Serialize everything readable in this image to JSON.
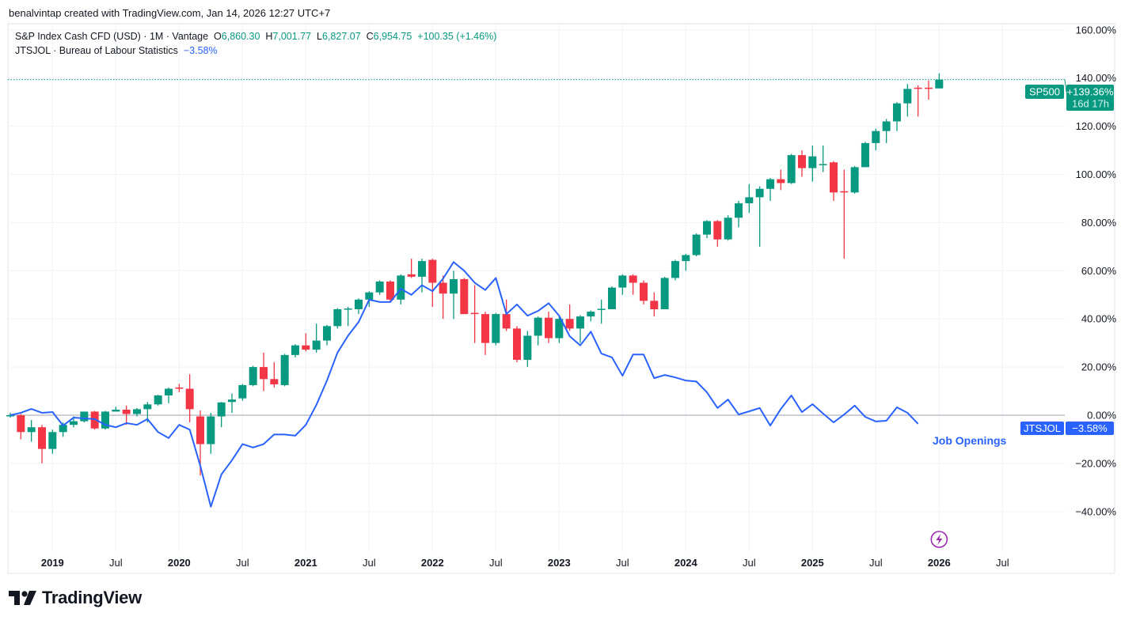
{
  "credit": "benalvintap created with TradingView.com, Jan 14, 2026 12:27 UTC+7",
  "legend": {
    "symbol": "S&P Index Cash CFD (USD) · 1M · Vantage",
    "o_label": "O",
    "o": "6,860.30",
    "h_label": "H",
    "h": "7,001.77",
    "l_label": "L",
    "l": "6,827.07",
    "c_label": "C",
    "c": "6,954.75",
    "change": "+100.35 (+1.46%)",
    "series2": "JTSJOL · Bureau of Labour Statistics",
    "series2_value": "−3.58%"
  },
  "logo_text": "TradingView",
  "colors": {
    "up": "#089981",
    "down": "#f23645",
    "line": "#2962ff",
    "event": "#9c27b0",
    "grid": "#f0f3fa",
    "text": "#131722"
  },
  "chart_data": {
    "type": "candlestick+line",
    "start_month": "2018-09",
    "y_unit": "% change",
    "ylim": [
      -55,
      165
    ],
    "y_ticks": [
      "160.00%",
      "140.00%",
      "120.00%",
      "100.00%",
      "80.00%",
      "60.00%",
      "40.00%",
      "20.00%",
      "0.00%",
      "−20.00%",
      "−40.00%"
    ],
    "y_tick_values": [
      160,
      140,
      120,
      100,
      80,
      60,
      40,
      20,
      0,
      -20,
      -40
    ],
    "x_ticks": [
      {
        "label": "2019",
        "month": 4,
        "bold": true
      },
      {
        "label": "Jul",
        "month": 10
      },
      {
        "label": "2020",
        "month": 16,
        "bold": true
      },
      {
        "label": "Jul",
        "month": 22
      },
      {
        "label": "2021",
        "month": 28,
        "bold": true
      },
      {
        "label": "Jul",
        "month": 34
      },
      {
        "label": "2022",
        "month": 40,
        "bold": true
      },
      {
        "label": "Jul",
        "month": 46
      },
      {
        "label": "2023",
        "month": 52,
        "bold": true
      },
      {
        "label": "Jul",
        "month": 58
      },
      {
        "label": "2024",
        "month": 64,
        "bold": true
      },
      {
        "label": "Jul",
        "month": 70
      },
      {
        "label": "2025",
        "month": 76,
        "bold": true
      },
      {
        "label": "Jul",
        "month": 82
      },
      {
        "label": "2026",
        "month": 88,
        "bold": true
      },
      {
        "label": "Jul",
        "month": 94
      }
    ],
    "series": [
      {
        "name": "SP500",
        "type": "candlestick",
        "fields": [
          "open",
          "high",
          "low",
          "close"
        ],
        "label": "SP500",
        "last_value": "+139.36%",
        "countdown": "16d 17h",
        "values": [
          [
            0,
            1,
            -1,
            0
          ],
          [
            0,
            0.5,
            -10,
            -7
          ],
          [
            -7,
            -2,
            -11,
            -5
          ],
          [
            -5,
            -4,
            -20,
            -14
          ],
          [
            -14,
            -6,
            -16,
            -7
          ],
          [
            -7,
            -3,
            -9,
            -4
          ],
          [
            -4,
            -0.5,
            -5,
            -2.5
          ],
          [
            -2.5,
            1.5,
            -3,
            1.5
          ],
          [
            1.5,
            1.8,
            -6,
            -5.5
          ],
          [
            -5.5,
            1.8,
            -6,
            1.5
          ],
          [
            1.5,
            3.5,
            1.5,
            2.3
          ],
          [
            2.3,
            4,
            -4,
            0.5
          ],
          [
            0.5,
            3,
            -0.5,
            2.5
          ],
          [
            2.5,
            5.5,
            -3,
            4.5
          ],
          [
            4.5,
            8.5,
            4,
            8.2
          ],
          [
            8.2,
            11.5,
            5,
            11
          ],
          [
            11.5,
            13,
            9.5,
            11
          ],
          [
            11,
            17,
            -3,
            2.5
          ],
          [
            -0.5,
            2,
            -25,
            -12
          ],
          [
            -12,
            1,
            -16,
            -0.5
          ],
          [
            -0.5,
            5.5,
            -5,
            5.3
          ],
          [
            5.5,
            9,
            1,
            6.5
          ],
          [
            7,
            13,
            6,
            12.5
          ],
          [
            12.5,
            20.5,
            12,
            20
          ],
          [
            20,
            26,
            10,
            15
          ],
          [
            15,
            22,
            11.5,
            12.8
          ],
          [
            12.5,
            25.5,
            12,
            25
          ],
          [
            25,
            29.5,
            24,
            29
          ],
          [
            29,
            34,
            26.5,
            27.2
          ],
          [
            27.2,
            38,
            26,
            31
          ],
          [
            31,
            37.5,
            29,
            37
          ],
          [
            37,
            44.5,
            36,
            44
          ],
          [
            44,
            45,
            37,
            44.3
          ],
          [
            44,
            48.5,
            42,
            48
          ],
          [
            48,
            51.5,
            45,
            51
          ],
          [
            51,
            56,
            50,
            55.5
          ],
          [
            55.5,
            56,
            47,
            48
          ],
          [
            48,
            58.5,
            46,
            58
          ],
          [
            58.5,
            65,
            57,
            57.5
          ],
          [
            57.5,
            65,
            51,
            64
          ],
          [
            64.5,
            65,
            45,
            55
          ],
          [
            55,
            58,
            40,
            50.5
          ],
          [
            50.5,
            60,
            40,
            56.5
          ],
          [
            56.5,
            57,
            42,
            42
          ],
          [
            42.5,
            54,
            30,
            42.3
          ],
          [
            42,
            43,
            25,
            30
          ],
          [
            30,
            42.5,
            29,
            42
          ],
          [
            42,
            48,
            35,
            36
          ],
          [
            36,
            37,
            22,
            23
          ],
          [
            23,
            35,
            20,
            33
          ],
          [
            33,
            41,
            29,
            40.5
          ],
          [
            40.5,
            43,
            30,
            32
          ],
          [
            32,
            41,
            30,
            40
          ],
          [
            40,
            46,
            35,
            36
          ],
          [
            36,
            41.5,
            30,
            41
          ],
          [
            41,
            43.5,
            39,
            43
          ],
          [
            44,
            48,
            38,
            44.2
          ],
          [
            44,
            53.5,
            44,
            53
          ],
          [
            53,
            58.5,
            50,
            58
          ],
          [
            58,
            58.5,
            50,
            55
          ],
          [
            55,
            56,
            46,
            47.5
          ],
          [
            47.5,
            51,
            41,
            44
          ],
          [
            44,
            57.5,
            44,
            57
          ],
          [
            57,
            64.5,
            56,
            64
          ],
          [
            64,
            67,
            60,
            66.5
          ],
          [
            66.5,
            75.5,
            66,
            75
          ],
          [
            75,
            81,
            73.5,
            80.6
          ],
          [
            80.6,
            81,
            70,
            73
          ],
          [
            73,
            83,
            72.5,
            82
          ],
          [
            82,
            89,
            78,
            88
          ],
          [
            88,
            96,
            84,
            90.5
          ],
          [
            90.5,
            95,
            70,
            94
          ],
          [
            94,
            98.5,
            89,
            98
          ],
          [
            98,
            102,
            93.5,
            96.4
          ],
          [
            96.4,
            108.5,
            96,
            108
          ],
          [
            108,
            110,
            99,
            102.6
          ],
          [
            102.6,
            112,
            97,
            107.5
          ],
          [
            104,
            112,
            101,
            104.3
          ],
          [
            105,
            105.5,
            89,
            92.5
          ],
          [
            93,
            102,
            65,
            92.8
          ],
          [
            92.5,
            103.5,
            92,
            103
          ],
          [
            103,
            113.5,
            103,
            113
          ],
          [
            113,
            119,
            110,
            118
          ],
          [
            118,
            123,
            113,
            122
          ],
          [
            122,
            130,
            118,
            129.5
          ],
          [
            129.5,
            137.5,
            124,
            135.5
          ],
          [
            136,
            137,
            124,
            135.7
          ],
          [
            136,
            139,
            131,
            135.7
          ],
          [
            135.7,
            142,
            136,
            139.36
          ]
        ]
      },
      {
        "name": "JTSJOL",
        "type": "line",
        "label": "JTSJOL",
        "last_value": "−3.58%",
        "annotation": "Job Openings",
        "values": [
          0,
          1,
          2.6,
          1,
          1.3,
          -4.3,
          -1,
          -1.3,
          -1.6,
          -4,
          -5,
          -3.3,
          -4,
          -1.6,
          -7,
          -9.5,
          -4,
          -6,
          -21,
          -38,
          -24.6,
          -18.7,
          -12,
          -13.4,
          -12,
          -8,
          -8,
          -8.5,
          -4,
          4.3,
          14.4,
          26,
          33,
          38.7,
          48,
          47,
          47,
          52.5,
          50,
          54,
          51.5,
          56.7,
          63.6,
          60,
          55,
          52,
          57,
          42,
          46,
          41.3,
          43.3,
          46.5,
          41.3,
          32.8,
          29,
          34.7,
          25.6,
          24,
          16.4,
          25.2,
          25.2,
          15.4,
          16.7,
          15.7,
          14.4,
          14,
          9.5,
          3,
          6.5,
          0.3,
          1.6,
          3,
          -4.3,
          2.6,
          8.2,
          1.3,
          4.6,
          0.7,
          -3,
          0.3,
          4,
          -0.7,
          -2.6,
          -2.3,
          3.3,
          1,
          -3.58
        ]
      }
    ],
    "event_marker": {
      "month": 88,
      "icon": "lightning-icon"
    }
  }
}
